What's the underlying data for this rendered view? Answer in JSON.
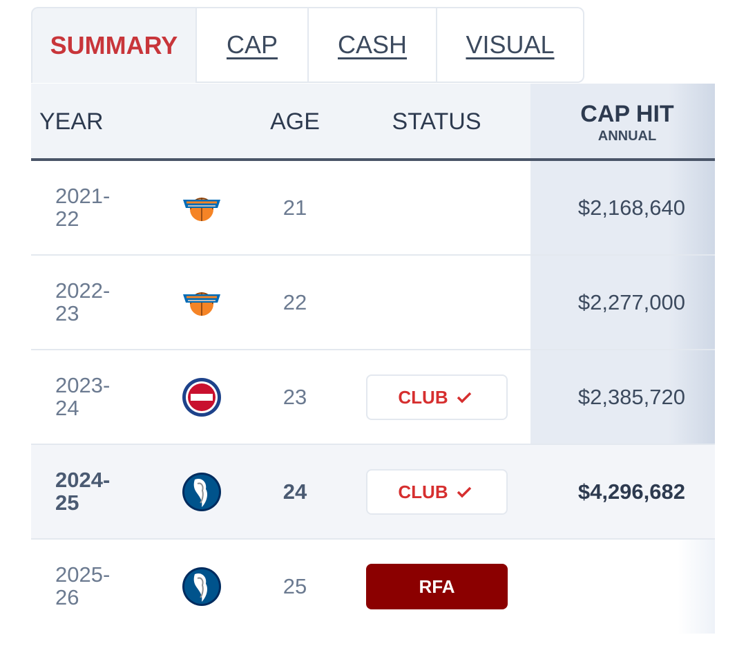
{
  "tabs": [
    "SUMMARY",
    "CAP",
    "CASH",
    "VISUAL"
  ],
  "table": {
    "header": {
      "year": "YEAR",
      "age": "AGE",
      "status": "STATUS",
      "cap_hit": "CAP HIT",
      "cap_hit_sub": "ANNUAL"
    },
    "rows": [
      {
        "year": "2021-22",
        "age": 21,
        "cap_hit": "$2,168,640"
      },
      {
        "year": "2022-23",
        "age": 22,
        "cap_hit": "$2,277,000"
      },
      {
        "year": "2023-24",
        "age": 23,
        "status": "CLUB",
        "cap_hit": "$2,385,720"
      },
      {
        "year": "2024-25",
        "age": 24,
        "status": "CLUB",
        "cap_hit": "$4,296,682"
      },
      {
        "year": "2025-26",
        "age": 25,
        "status": "RFA"
      }
    ]
  }
}
